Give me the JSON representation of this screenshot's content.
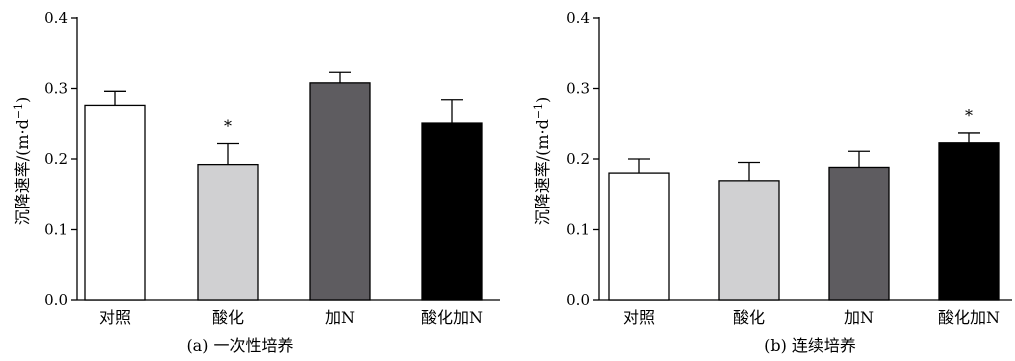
{
  "chart_data": [
    {
      "type": "bar",
      "categories": [
        "对照",
        "酸化",
        "加N",
        "酸化加N"
      ],
      "values": [
        0.276,
        0.192,
        0.308,
        0.251
      ],
      "errors": [
        0.02,
        0.03,
        0.015,
        0.033
      ],
      "significance": [
        "",
        "*",
        "",
        ""
      ],
      "colors": [
        "#ffffff",
        "#d0d0d2",
        "#5e5c60",
        "#000000"
      ],
      "ylabel": "沉降速率/(m·d",
      "ylabel_sup": "−1",
      "ylabel_close": ")",
      "ylim": [
        0,
        0.4
      ],
      "yticks": [
        "0.0",
        "0.1",
        "0.2",
        "0.3",
        "0.4"
      ],
      "caption": "(a) 一次性培养",
      "grid": false,
      "legend": "none"
    },
    {
      "type": "bar",
      "categories": [
        "对照",
        "酸化",
        "加N",
        "酸化加N"
      ],
      "values": [
        0.18,
        0.169,
        0.188,
        0.223
      ],
      "errors": [
        0.02,
        0.026,
        0.023,
        0.014
      ],
      "significance": [
        "",
        "",
        "",
        "*"
      ],
      "colors": [
        "#ffffff",
        "#d0d0d2",
        "#5e5c60",
        "#000000"
      ],
      "ylabel": "沉降速率/(m·d",
      "ylabel_sup": "−1",
      "ylabel_close": ")",
      "ylim": [
        0,
        0.4
      ],
      "yticks": [
        "0.0",
        "0.1",
        "0.2",
        "0.3",
        "0.4"
      ],
      "caption": "(b) 连续培养",
      "grid": false,
      "legend": "none"
    }
  ]
}
